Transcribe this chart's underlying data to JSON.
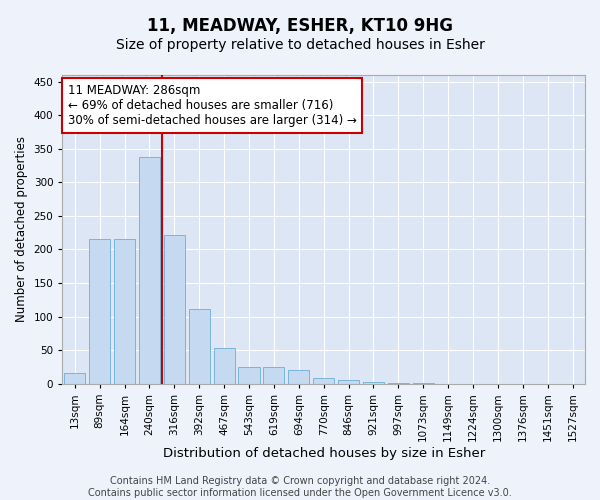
{
  "title": "11, MEADWAY, ESHER, KT10 9HG",
  "subtitle": "Size of property relative to detached houses in Esher",
  "xlabel": "Distribution of detached houses by size in Esher",
  "ylabel": "Number of detached properties",
  "categories": [
    "13sqm",
    "89sqm",
    "164sqm",
    "240sqm",
    "316sqm",
    "392sqm",
    "467sqm",
    "543sqm",
    "619sqm",
    "694sqm",
    "770sqm",
    "846sqm",
    "921sqm",
    "997sqm",
    "1073sqm",
    "1149sqm",
    "1224sqm",
    "1300sqm",
    "1376sqm",
    "1451sqm",
    "1527sqm"
  ],
  "values": [
    16,
    215,
    215,
    338,
    221,
    111,
    53,
    25,
    25,
    20,
    8,
    5,
    2,
    1,
    1,
    0,
    0,
    0,
    0,
    0,
    0
  ],
  "bar_color": "#c5d9f0",
  "bar_edge_color": "#6baed6",
  "vline_color": "#cc0000",
  "annotation_line1": "11 MEADWAY: 286sqm",
  "annotation_line2": "← 69% of detached houses are smaller (716)",
  "annotation_line3": "30% of semi-detached houses are larger (314) →",
  "annotation_box_color": "#ffffff",
  "annotation_box_edge": "#cc0000",
  "ylim": [
    0,
    460
  ],
  "yticks": [
    0,
    50,
    100,
    150,
    200,
    250,
    300,
    350,
    400,
    450
  ],
  "fig_bg_color": "#eef2fa",
  "plot_bg_color": "#dce6f5",
  "footer_text": "Contains HM Land Registry data © Crown copyright and database right 2024.\nContains public sector information licensed under the Open Government Licence v3.0.",
  "title_fontsize": 12,
  "subtitle_fontsize": 10,
  "xlabel_fontsize": 9.5,
  "ylabel_fontsize": 8.5,
  "tick_fontsize": 7.5,
  "annotation_fontsize": 8.5,
  "footer_fontsize": 7
}
